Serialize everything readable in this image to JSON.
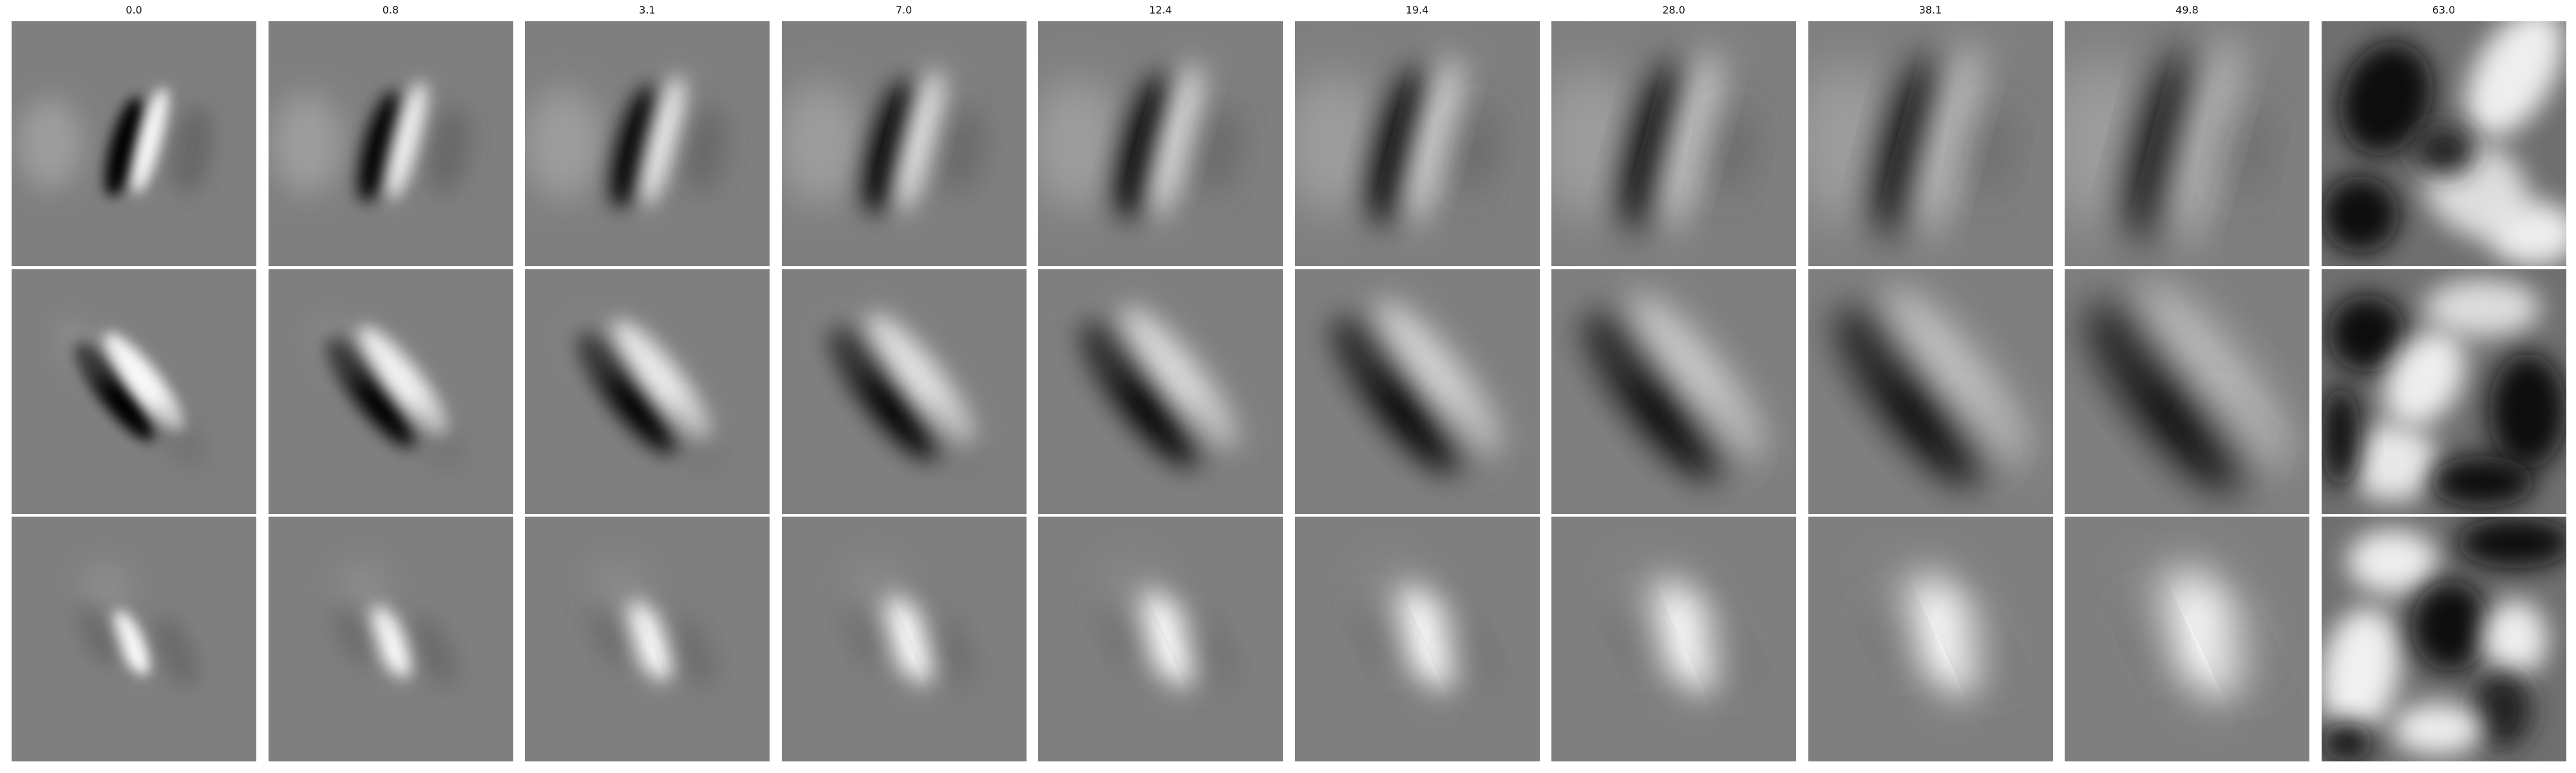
{
  "figure": {
    "column_titles": [
      "0.0",
      "0.8",
      "3.1",
      "7.0",
      "12.4",
      "19.4",
      "28.0",
      "38.1",
      "49.8",
      "63.0"
    ],
    "row_count": 3,
    "colormap": "grayscale",
    "background_gray": "#7f7f7f",
    "panel_kind": "receptive-field filter image"
  }
}
